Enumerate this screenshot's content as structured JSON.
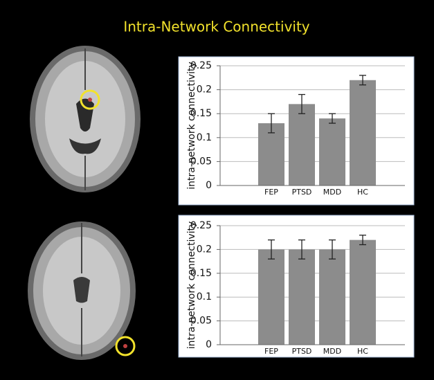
{
  "title": "Intra-Network Connectivity",
  "chart_data": [
    {
      "type": "bar",
      "y_label": "intra-network connectivity",
      "categories": [
        "FEP",
        "PTSD",
        "MDD",
        "HC"
      ],
      "values": [
        0.13,
        0.17,
        0.14,
        0.22
      ],
      "errors": [
        0.02,
        0.02,
        0.01,
        0.01
      ],
      "color": "#8c8c8c",
      "ylim": [
        0,
        0.25
      ],
      "yticks": [
        0,
        0.05,
        0.1,
        0.15,
        0.2,
        0.25
      ],
      "grid": true
    },
    {
      "type": "bar",
      "y_label": "intra-network connectivity",
      "categories": [
        "FEP",
        "PTSD",
        "MDD",
        "HC"
      ],
      "values": [
        0.2,
        0.2,
        0.2,
        0.22
      ],
      "errors": [
        0.02,
        0.02,
        0.02,
        0.01
      ],
      "color": "#8c8c8c",
      "ylim": [
        0,
        0.25
      ],
      "yticks": [
        0,
        0.05,
        0.1,
        0.15,
        0.2,
        0.25
      ],
      "grid": true
    }
  ]
}
